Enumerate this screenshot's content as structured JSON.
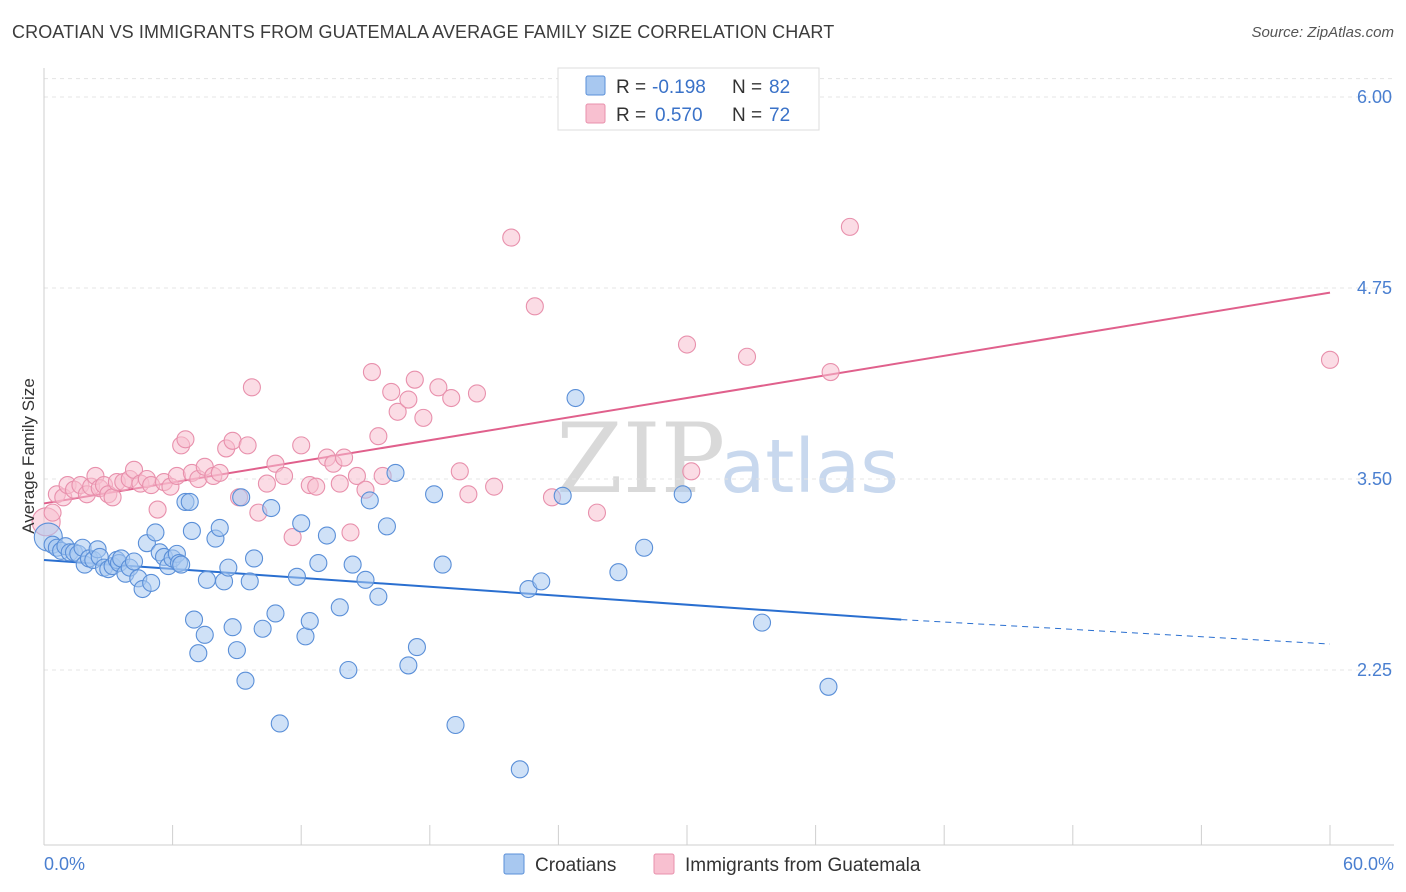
{
  "header": {
    "title": "CROATIAN VS IMMIGRANTS FROM GUATEMALA AVERAGE FAMILY SIZE CORRELATION CHART",
    "source": "Source: ZipAtlas.com"
  },
  "watermark": {
    "zip": "ZIP",
    "atlas": "atlas"
  },
  "colors": {
    "croatians_fill": "#a8c8f0",
    "croatians_stroke": "#5a8fd8",
    "croatians_line": "#2a6fd0",
    "guatemala_fill": "#f8c0d0",
    "guatemala_stroke": "#e890ac",
    "guatemala_line": "#e0608c",
    "tick_label": "#4a7fd0"
  },
  "legend": {
    "rows": [
      {
        "r_label": "R =",
        "r_value": "-0.198",
        "n_label": "N =",
        "n_value": "82"
      },
      {
        "r_label": "R =",
        "r_value": "0.570",
        "n_label": "N =",
        "n_value": "72"
      }
    ]
  },
  "bottom_legend": [
    "Croatians",
    "Immigrants from Guatemala"
  ],
  "chart_data": {
    "type": "scatter",
    "ylabel": "Average Family Size",
    "xlabel": "",
    "xlim": [
      0,
      60
    ],
    "ylim": [
      1.2,
      6.2
    ],
    "x_tick_labels": [
      "0.0%",
      "60.0%"
    ],
    "y_ticks": [
      2.25,
      3.5,
      4.75,
      6.0
    ],
    "y_tick_labels": [
      "2.25",
      "3.50",
      "4.75",
      "6.00"
    ],
    "grid": "dashed horizontal",
    "legend_position": "top-center",
    "series": [
      {
        "name": "Croatians",
        "trend": {
          "x0": 0,
          "y0": 2.97,
          "x1": 40,
          "y1": 2.58,
          "dash_to": 60,
          "dash_y": 2.42
        },
        "points": [
          [
            0.2,
            3.12
          ],
          [
            0.4,
            3.07
          ],
          [
            0.6,
            3.05
          ],
          [
            0.8,
            3.03
          ],
          [
            1.0,
            3.06
          ],
          [
            1.2,
            3.02
          ],
          [
            1.4,
            3.02
          ],
          [
            1.6,
            3.01
          ],
          [
            1.8,
            3.05
          ],
          [
            1.9,
            2.94
          ],
          [
            2.1,
            2.98
          ],
          [
            2.3,
            2.97
          ],
          [
            2.5,
            3.04
          ],
          [
            2.6,
            2.99
          ],
          [
            2.8,
            2.92
          ],
          [
            3.0,
            2.91
          ],
          [
            3.2,
            2.93
          ],
          [
            3.4,
            2.97
          ],
          [
            3.5,
            2.95
          ],
          [
            3.6,
            2.98
          ],
          [
            3.8,
            2.88
          ],
          [
            4.0,
            2.92
          ],
          [
            4.2,
            2.96
          ],
          [
            4.4,
            2.85
          ],
          [
            4.6,
            2.78
          ],
          [
            4.8,
            3.08
          ],
          [
            5.0,
            2.82
          ],
          [
            5.2,
            3.15
          ],
          [
            5.4,
            3.02
          ],
          [
            5.6,
            2.99
          ],
          [
            5.8,
            2.93
          ],
          [
            6.0,
            2.98
          ],
          [
            6.2,
            3.01
          ],
          [
            6.3,
            2.95
          ],
          [
            6.4,
            2.94
          ],
          [
            6.6,
            3.35
          ],
          [
            6.8,
            3.35
          ],
          [
            6.9,
            3.16
          ],
          [
            7.0,
            2.58
          ],
          [
            7.2,
            2.36
          ],
          [
            7.5,
            2.48
          ],
          [
            7.6,
            2.84
          ],
          [
            8.0,
            3.11
          ],
          [
            8.2,
            3.18
          ],
          [
            8.4,
            2.83
          ],
          [
            8.6,
            2.92
          ],
          [
            8.8,
            2.53
          ],
          [
            9.0,
            2.38
          ],
          [
            9.2,
            3.38
          ],
          [
            9.4,
            2.18
          ],
          [
            9.6,
            2.83
          ],
          [
            9.8,
            2.98
          ],
          [
            10.2,
            2.52
          ],
          [
            10.6,
            3.31
          ],
          [
            10.8,
            2.62
          ],
          [
            11.0,
            1.9
          ],
          [
            11.8,
            2.86
          ],
          [
            12.0,
            3.21
          ],
          [
            12.2,
            2.47
          ],
          [
            12.4,
            2.57
          ],
          [
            12.8,
            2.95
          ],
          [
            13.2,
            3.13
          ],
          [
            13.8,
            2.66
          ],
          [
            14.2,
            2.25
          ],
          [
            14.4,
            2.94
          ],
          [
            15.0,
            2.84
          ],
          [
            15.2,
            3.36
          ],
          [
            15.6,
            2.73
          ],
          [
            16.0,
            3.19
          ],
          [
            16.4,
            3.54
          ],
          [
            17.0,
            2.28
          ],
          [
            17.4,
            2.4
          ],
          [
            18.2,
            3.4
          ],
          [
            18.6,
            2.94
          ],
          [
            19.2,
            1.89
          ],
          [
            22.2,
            1.6
          ],
          [
            22.6,
            2.78
          ],
          [
            23.2,
            2.83
          ],
          [
            24.2,
            3.39
          ],
          [
            24.8,
            4.03
          ],
          [
            26.8,
            2.89
          ],
          [
            28.0,
            3.05
          ],
          [
            29.8,
            3.4
          ],
          [
            33.5,
            2.56
          ],
          [
            36.6,
            2.14
          ]
        ]
      },
      {
        "name": "Immigrants from Guatemala",
        "trend": {
          "x0": 0,
          "y0": 3.34,
          "x1": 60,
          "y1": 4.72
        },
        "points": [
          [
            0.1,
            3.22
          ],
          [
            0.4,
            3.28
          ],
          [
            0.6,
            3.4
          ],
          [
            0.9,
            3.38
          ],
          [
            1.1,
            3.46
          ],
          [
            1.4,
            3.43
          ],
          [
            1.7,
            3.46
          ],
          [
            2.0,
            3.4
          ],
          [
            2.2,
            3.45
          ],
          [
            2.4,
            3.52
          ],
          [
            2.6,
            3.44
          ],
          [
            2.8,
            3.46
          ],
          [
            3.0,
            3.4
          ],
          [
            3.2,
            3.38
          ],
          [
            3.4,
            3.48
          ],
          [
            3.7,
            3.48
          ],
          [
            4.0,
            3.5
          ],
          [
            4.2,
            3.56
          ],
          [
            4.5,
            3.47
          ],
          [
            4.8,
            3.5
          ],
          [
            5.0,
            3.46
          ],
          [
            5.3,
            3.3
          ],
          [
            5.6,
            3.48
          ],
          [
            5.9,
            3.45
          ],
          [
            6.2,
            3.52
          ],
          [
            6.4,
            3.72
          ],
          [
            6.6,
            3.76
          ],
          [
            6.9,
            3.54
          ],
          [
            7.2,
            3.5
          ],
          [
            7.5,
            3.58
          ],
          [
            7.9,
            3.52
          ],
          [
            8.2,
            3.54
          ],
          [
            8.5,
            3.7
          ],
          [
            8.8,
            3.75
          ],
          [
            9.1,
            3.38
          ],
          [
            9.5,
            3.72
          ],
          [
            9.7,
            4.1
          ],
          [
            10.0,
            3.28
          ],
          [
            10.4,
            3.47
          ],
          [
            10.8,
            3.6
          ],
          [
            11.2,
            3.52
          ],
          [
            11.6,
            3.12
          ],
          [
            12.0,
            3.72
          ],
          [
            12.4,
            3.46
          ],
          [
            12.7,
            3.45
          ],
          [
            13.2,
            3.64
          ],
          [
            13.5,
            3.6
          ],
          [
            13.8,
            3.47
          ],
          [
            14.0,
            3.64
          ],
          [
            14.3,
            3.15
          ],
          [
            14.6,
            3.52
          ],
          [
            15.0,
            3.43
          ],
          [
            15.3,
            4.2
          ],
          [
            15.6,
            3.78
          ],
          [
            15.8,
            3.52
          ],
          [
            16.2,
            4.07
          ],
          [
            16.5,
            3.94
          ],
          [
            17.0,
            4.02
          ],
          [
            17.3,
            4.15
          ],
          [
            17.7,
            3.9
          ],
          [
            18.4,
            4.1
          ],
          [
            19.0,
            4.03
          ],
          [
            19.4,
            3.55
          ],
          [
            19.8,
            3.4
          ],
          [
            20.2,
            4.06
          ],
          [
            21.0,
            3.45
          ],
          [
            21.8,
            5.08
          ],
          [
            22.9,
            4.63
          ],
          [
            23.7,
            3.38
          ],
          [
            25.8,
            3.28
          ],
          [
            30.0,
            4.38
          ],
          [
            30.2,
            3.55
          ],
          [
            32.8,
            4.3
          ],
          [
            36.7,
            4.2
          ],
          [
            37.6,
            5.15
          ],
          [
            60.0,
            4.28
          ]
        ]
      }
    ]
  }
}
